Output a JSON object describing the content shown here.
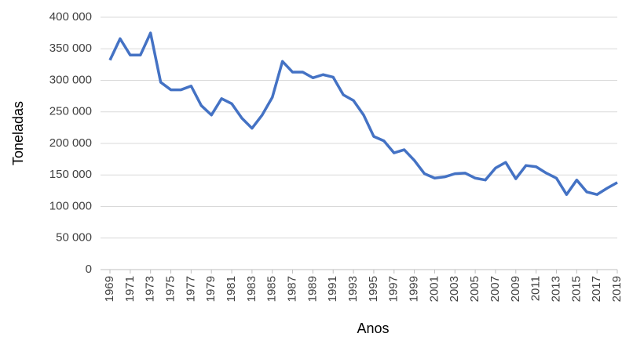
{
  "chart_data": {
    "type": "line",
    "ylabel": "Toneladas",
    "xlabel": "Anos",
    "x": [
      1969,
      1970,
      1971,
      1972,
      1973,
      1974,
      1975,
      1976,
      1977,
      1978,
      1979,
      1980,
      1981,
      1982,
      1983,
      1984,
      1985,
      1986,
      1987,
      1988,
      1989,
      1990,
      1991,
      1992,
      1993,
      1994,
      1995,
      1996,
      1997,
      1998,
      1999,
      2000,
      2001,
      2002,
      2003,
      2004,
      2005,
      2006,
      2007,
      2008,
      2009,
      2010,
      2011,
      2012,
      2013,
      2014,
      2015,
      2016,
      2017,
      2018,
      2019
    ],
    "series": [
      {
        "name": "Toneladas",
        "color": "#4472c4",
        "values": [
          332000,
          366000,
          340000,
          340000,
          375000,
          297000,
          285000,
          285000,
          291000,
          260000,
          245000,
          271000,
          263000,
          240000,
          224000,
          245000,
          273000,
          330000,
          313000,
          313000,
          304000,
          309000,
          305000,
          277000,
          268000,
          245000,
          211000,
          204000,
          185000,
          190000,
          173000,
          152000,
          145000,
          147000,
          152000,
          153000,
          145000,
          142000,
          161000,
          170000,
          144000,
          165000,
          163000,
          153000,
          145000,
          119000,
          142000,
          123000,
          119000,
          129000,
          138000
        ]
      }
    ],
    "xlim": [
      1969,
      2019
    ],
    "xticks": [
      1969,
      1971,
      1973,
      1975,
      1977,
      1979,
      1981,
      1983,
      1985,
      1987,
      1989,
      1991,
      1993,
      1995,
      1997,
      1999,
      2001,
      2003,
      2005,
      2007,
      2009,
      2011,
      2013,
      2015,
      2017,
      2019
    ],
    "ylim": [
      0,
      400000
    ],
    "yticks": [
      0,
      {
        "value": 50000,
        "label": "50 000"
      },
      {
        "value": 100000,
        "label": "100 000"
      },
      {
        "value": 150000,
        "label": "150 000"
      },
      {
        "value": 200000,
        "label": "200 000"
      },
      {
        "value": 250000,
        "label": "250 000"
      },
      {
        "value": 300000,
        "label": "300 000"
      },
      {
        "value": 350000,
        "label": "350 000"
      },
      {
        "value": 400000,
        "label": "400 000"
      }
    ],
    "grid": true
  }
}
